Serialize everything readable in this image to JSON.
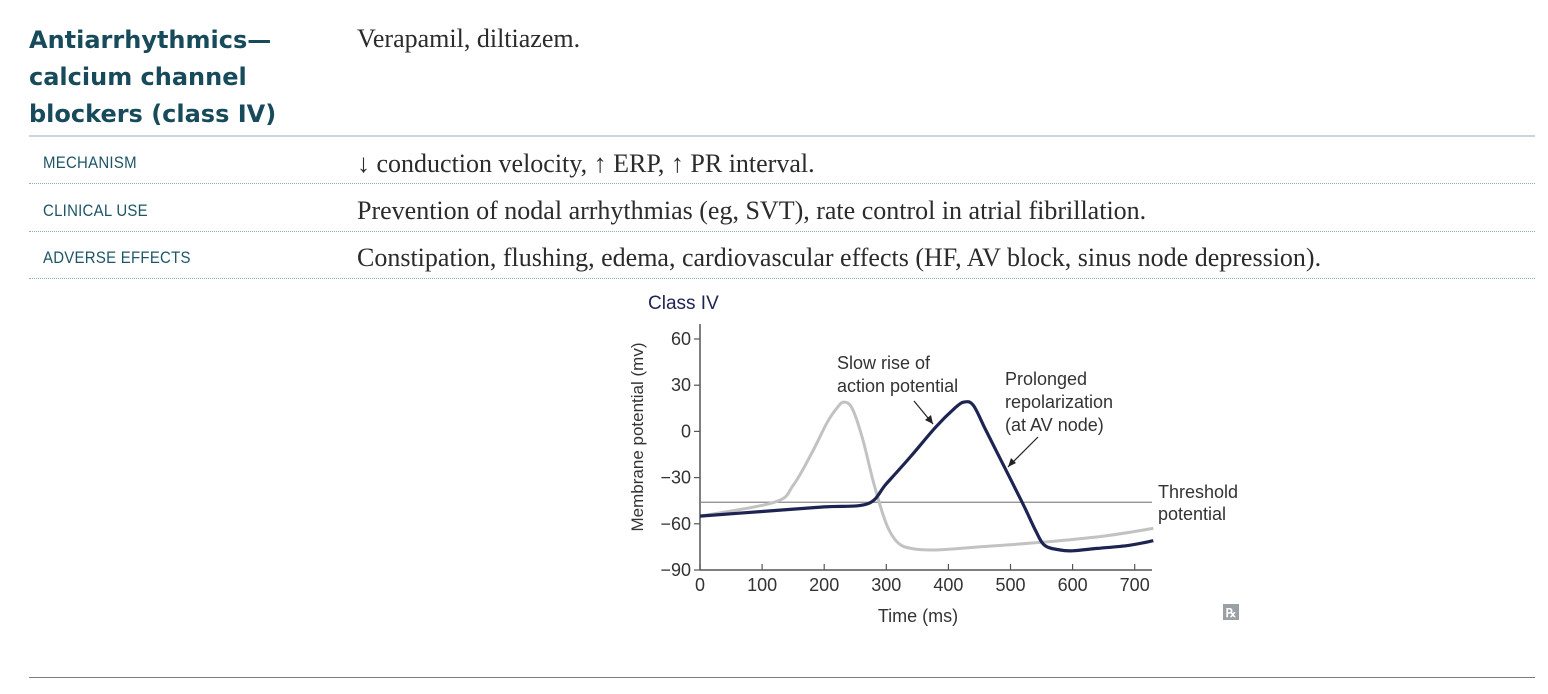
{
  "header": {
    "title": "Antiarrhythmics—\ncalcium channel\nblockers (class IV)",
    "drugs": "Verapamil, diltiazem."
  },
  "rows": [
    {
      "label": "MECHANISM",
      "text": "↓ conduction velocity, ↑ ERP, ↑ PR interval."
    },
    {
      "label": "CLINICAL USE",
      "text": "Prevention of nodal arrhythmias (eg, SVT), rate control in atrial fibrillation."
    },
    {
      "label": "ADVERSE EFFECTS",
      "text": "Constipation, flushing, edema, cardiovascular effects (HF, AV block, sinus node depression)."
    }
  ],
  "figure": {
    "logo": "Rx"
  },
  "chart_data": {
    "type": "line",
    "title": "Class IV",
    "xlabel": "Time (ms)",
    "ylabel": "Membrane potential (mv)",
    "xlim": [
      0,
      730
    ],
    "ylim": [
      -90,
      70
    ],
    "xticks": [
      0,
      100,
      200,
      300,
      400,
      500,
      600,
      700
    ],
    "yticks": [
      60,
      30,
      0,
      -30,
      -60,
      -90
    ],
    "threshold": {
      "y": -46,
      "label_line1": "Threshold",
      "label_line2": "potential"
    },
    "series": [
      {
        "style": "normal (gray)",
        "color": "#c2c2c2",
        "points": [
          [
            0,
            -55
          ],
          [
            120,
            -46
          ],
          [
            150,
            -35
          ],
          [
            180,
            -14
          ],
          [
            205,
            6
          ],
          [
            222,
            16
          ],
          [
            232,
            19
          ],
          [
            245,
            15
          ],
          [
            262,
            -5
          ],
          [
            280,
            -34
          ],
          [
            300,
            -60
          ],
          [
            318,
            -72
          ],
          [
            340,
            -76
          ],
          [
            380,
            -77
          ],
          [
            450,
            -75
          ],
          [
            550,
            -72
          ],
          [
            650,
            -68
          ],
          [
            730,
            -63
          ]
        ]
      },
      {
        "style": "class IV (navy)",
        "color": "#1d2452",
        "points": [
          [
            0,
            -55
          ],
          [
            100,
            -52
          ],
          [
            200,
            -49
          ],
          [
            270,
            -47
          ],
          [
            300,
            -34
          ],
          [
            340,
            -16
          ],
          [
            380,
            3
          ],
          [
            410,
            15
          ],
          [
            425,
            19
          ],
          [
            440,
            17
          ],
          [
            460,
            1
          ],
          [
            490,
            -23
          ],
          [
            520,
            -47
          ],
          [
            540,
            -64
          ],
          [
            555,
            -74
          ],
          [
            580,
            -77
          ],
          [
            600,
            -77.5
          ],
          [
            640,
            -76
          ],
          [
            690,
            -74
          ],
          [
            730,
            -71
          ]
        ]
      }
    ],
    "annotations": [
      {
        "line1": "Slow rise of",
        "line2": "action potential",
        "line3": ""
      },
      {
        "line1": "Prolonged",
        "line2": "repolarization",
        "line3": "(at AV node)"
      }
    ]
  }
}
